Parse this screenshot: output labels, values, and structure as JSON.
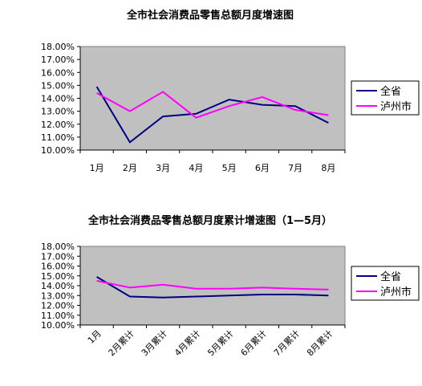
{
  "chart_data": [
    {
      "type": "line",
      "title": "全市社会消费品零售总额月度增速图",
      "categories": [
        "1月",
        "2月",
        "3月",
        "4月",
        "5月",
        "6月",
        "7月",
        "8月"
      ],
      "y_ticks": [
        "18.00%",
        "17.00%",
        "16.00%",
        "15.00%",
        "14.00%",
        "13.00%",
        "12.00%",
        "11.00%",
        "10.00%"
      ],
      "ylim": [
        10,
        18
      ],
      "grid": false,
      "legend": "right",
      "series": [
        {
          "name": "全省",
          "color": "#000080",
          "values": [
            14.9,
            10.6,
            12.6,
            12.8,
            13.9,
            13.5,
            13.4,
            12.1
          ]
        },
        {
          "name": "泸州市",
          "color": "#ff00ff",
          "values": [
            14.4,
            13.0,
            14.5,
            12.5,
            13.4,
            14.1,
            13.1,
            12.7
          ]
        }
      ]
    },
    {
      "type": "line",
      "title": "全市社会消费品零售总额月度累计增速图（1—5月）",
      "categories": [
        "1月",
        "2月累计",
        "3月累计",
        "4月累计",
        "5月累计",
        "6月累计",
        "7月累计",
        "8月累计"
      ],
      "y_ticks": [
        "18.00%",
        "17.00%",
        "16.00%",
        "15.00%",
        "14.00%",
        "13.00%",
        "12.00%",
        "11.00%",
        "10.00%"
      ],
      "ylim": [
        10,
        18
      ],
      "grid": false,
      "legend": "right",
      "series": [
        {
          "name": "全省",
          "color": "#000080",
          "values": [
            14.9,
            12.9,
            12.8,
            12.9,
            13.0,
            13.1,
            13.1,
            13.0
          ]
        },
        {
          "name": "泸州市",
          "color": "#ff00ff",
          "values": [
            14.5,
            13.8,
            14.1,
            13.7,
            13.7,
            13.8,
            13.7,
            13.6
          ]
        }
      ]
    }
  ]
}
